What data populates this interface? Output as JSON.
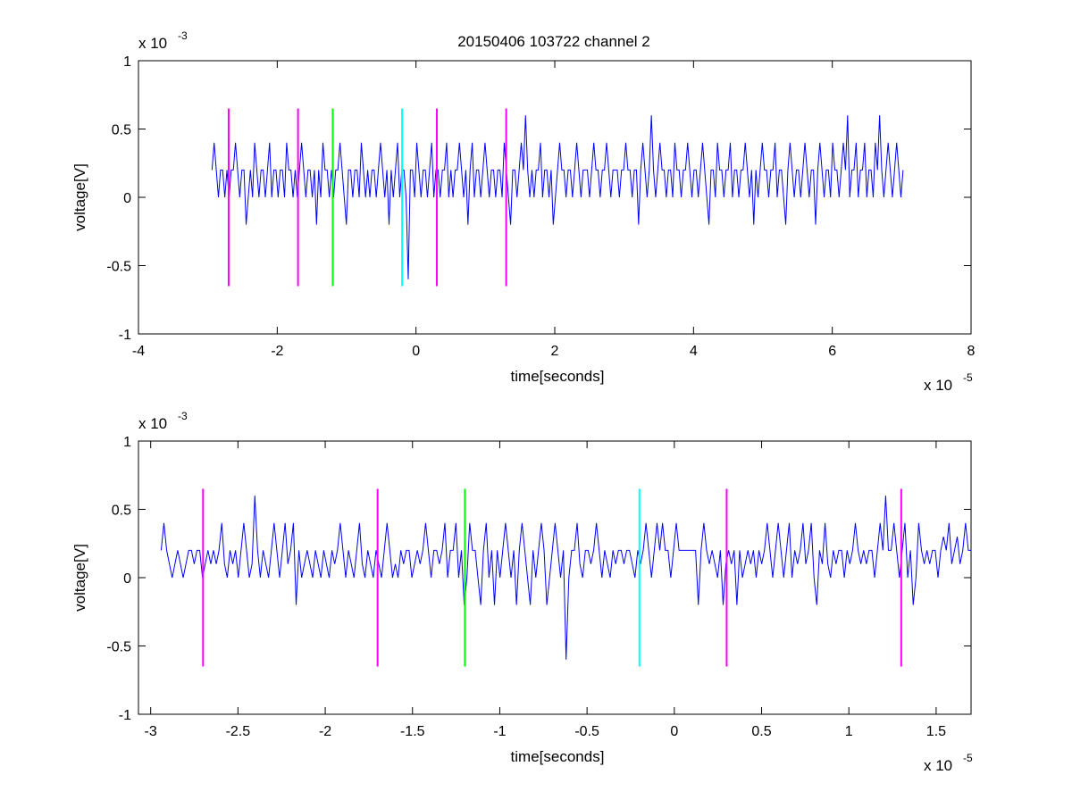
{
  "figure": {
    "title": "20150406 103722 channel 2"
  },
  "chart_data": [
    {
      "type": "line",
      "title": "20150406 103722 channel 2",
      "xlabel": "time[seconds]",
      "ylabel": "voltage[V]",
      "x_exponent_label": "x 10",
      "x_exponent": "-5",
      "y_exponent_label": "x 10",
      "y_exponent": "-3",
      "xlim": [
        -4,
        8
      ],
      "ylim": [
        -1,
        1
      ],
      "xticks": [
        -4,
        -2,
        0,
        2,
        4,
        6,
        8
      ],
      "xtick_labels": [
        "-4",
        "-2",
        "0",
        "2",
        "4",
        "6",
        "8"
      ],
      "yticks": [
        -1,
        -0.5,
        0,
        0.5,
        1
      ],
      "ytick_labels": [
        "-1",
        "-0.5",
        "0",
        "0.5",
        "1"
      ],
      "grid": false,
      "series": [
        {
          "color": "#0000ff",
          "x_start": -2.94,
          "x_end": 7.02,
          "y_values": [
            0.2,
            0.4,
            0.2,
            0,
            0.2,
            0.2,
            0,
            0.2,
            0,
            0.2,
            0.2,
            0.4,
            0.2,
            0,
            0.2,
            0.2,
            -0.2,
            0,
            0.2,
            0,
            0.4,
            0.2,
            0,
            0.2,
            0.2,
            0,
            0.2,
            0.4,
            0,
            0.2,
            0.2,
            0,
            0.2,
            0.2,
            0,
            0.4,
            0.2,
            0.2,
            0,
            0.2,
            0,
            0.2,
            0.4,
            0.2,
            0,
            0.2,
            0.2,
            0,
            0.2,
            -0.2,
            0.2,
            0,
            0.4,
            0.2,
            0.2,
            0,
            0.2,
            0,
            0.2,
            0.2,
            0.4,
            0.2,
            0,
            -0.2,
            0.2,
            0.2,
            0,
            0.2,
            0.2,
            0,
            0.4,
            0.2,
            0,
            0.2,
            0,
            0.2,
            0.2,
            0,
            0.2,
            0.4,
            0.2,
            0,
            0.2,
            -0.2,
            0.2,
            0,
            0.2,
            0.4,
            0,
            0.2,
            0.2,
            0,
            -0.6,
            0.2,
            0.2,
            0,
            0.4,
            0.2,
            0,
            0.2,
            0.2,
            0,
            0.2,
            0.4,
            0,
            0.2,
            0.2,
            0,
            0.2,
            0.2,
            0.4,
            0,
            0.2,
            0,
            0.2,
            0.2,
            0.4,
            0.2,
            0,
            0.2,
            -0.2,
            0.2,
            0.4,
            0,
            0.2,
            0.2,
            0,
            0.2,
            0.4,
            0.2,
            0,
            0.2,
            0.2,
            0,
            0.2,
            0.2,
            0,
            0.4,
            0.2,
            0,
            -0.2,
            0.2,
            0.2,
            0,
            0.2,
            0.4,
            0.2,
            0.6,
            0.2,
            0,
            0.2,
            0,
            0.2,
            0.2,
            0.4,
            0,
            0.2,
            0.2,
            0,
            0.2,
            -0.2,
            0,
            0.2,
            0.4,
            0.2,
            0.2,
            0,
            0.2,
            0.2,
            0,
            0.2,
            0.4,
            0.2,
            0,
            0.2,
            0.2,
            0.2,
            0,
            0.2,
            0.4,
            0.2,
            0.2,
            0,
            0.2,
            0.2,
            0.4,
            0.2,
            0,
            0.2,
            0.2,
            0.2,
            0,
            0.2,
            0.2,
            0.4,
            0.2,
            0.2,
            0,
            0.2,
            0.2,
            -0.2,
            0.2,
            0.4,
            0.2,
            0,
            0.2,
            0.6,
            0.2,
            0,
            0.2,
            0.4,
            0.2,
            0.2,
            0,
            0.2,
            0.2,
            0,
            0.4,
            0.2,
            0.2,
            0,
            0.2,
            0.2,
            0.4,
            0.2,
            0,
            0.2,
            0.2,
            0,
            0.2,
            0.4,
            0.2,
            0,
            -0.2,
            0.2,
            0.2,
            0,
            0.4,
            0.2,
            0.2,
            0,
            0.2,
            0.2,
            0.4,
            0,
            0.2,
            0.2,
            0,
            0.2,
            0.2,
            0.4,
            0.2,
            0,
            0.2,
            -0.2,
            0.2,
            0,
            0.2,
            0.4,
            0.2,
            0.2,
            0,
            0.2,
            0.2,
            0.4,
            0,
            0.2,
            0.2,
            0,
            -0.2,
            0.2,
            0.4,
            0.2,
            0,
            0.2,
            0.2,
            0,
            0.2,
            0.4,
            0.2,
            0,
            0.2,
            0.2,
            -0.2,
            0.2,
            0.4,
            0.2,
            0,
            0.2,
            0.2,
            0,
            0.4,
            0.2,
            0.2,
            0,
            0.2,
            0.4,
            0.2,
            0.6,
            0,
            0.2,
            0.2,
            0.4,
            0,
            0.2,
            0.2,
            0.4,
            0,
            0.2,
            0.2,
            0,
            0.4,
            0.2,
            0.6,
            0.2,
            0,
            0.2,
            0.4,
            0.2,
            0,
            0.2,
            0.4,
            0.2,
            0,
            0.2
          ]
        }
      ],
      "markers": [
        {
          "x": -2.7,
          "y_min": -0.65,
          "y_max": 0.65,
          "color": "#ff00ff"
        },
        {
          "x": -1.7,
          "y_min": -0.65,
          "y_max": 0.65,
          "color": "#ff00ff"
        },
        {
          "x": -1.2,
          "y_min": -0.65,
          "y_max": 0.65,
          "color": "#00ff00"
        },
        {
          "x": -0.2,
          "y_min": -0.65,
          "y_max": 0.65,
          "color": "#00ffff"
        },
        {
          "x": 0.3,
          "y_min": -0.65,
          "y_max": 0.65,
          "color": "#ff00ff"
        },
        {
          "x": 1.3,
          "y_min": -0.65,
          "y_max": 0.65,
          "color": "#ff00ff"
        }
      ]
    },
    {
      "type": "line",
      "title": "",
      "xlabel": "time[seconds]",
      "ylabel": "voltage[V]",
      "x_exponent_label": "x 10",
      "x_exponent": "-5",
      "y_exponent_label": "x 10",
      "y_exponent": "-3",
      "xlim": [
        -3.07,
        1.7
      ],
      "ylim": [
        -1,
        1
      ],
      "xticks": [
        -3,
        -2.5,
        -2,
        -1.5,
        -1,
        -0.5,
        0,
        0.5,
        1,
        1.5
      ],
      "xtick_labels": [
        "-3",
        "-2.5",
        "-2",
        "-1.5",
        "-1",
        "-0.5",
        "0",
        "0.5",
        "1",
        "1.5"
      ],
      "yticks": [
        -1,
        -0.5,
        0,
        0.5,
        1
      ],
      "ytick_labels": [
        "-1",
        "-0.5",
        "0",
        "0.5",
        "1"
      ],
      "grid": false,
      "series": [
        {
          "color": "#0000ff",
          "x_start": -2.94,
          "x_end": 1.7,
          "y_values": [
            0.2,
            0.4,
            0.2,
            0.1,
            0,
            0.1,
            0.2,
            0.1,
            0,
            0.1,
            0.2,
            0.2,
            0.1,
            0.2,
            0.2,
            0,
            0.1,
            0.2,
            0.1,
            0.2,
            0.1,
            0.2,
            0.4,
            0.1,
            0,
            0.2,
            0.1,
            0.2,
            0,
            0.2,
            0.4,
            0.2,
            0,
            0.1,
            0.6,
            0.2,
            0,
            0.2,
            0.1,
            0,
            0.2,
            0.4,
            0.2,
            0,
            0.2,
            0.4,
            0.1,
            0.2,
            0.4,
            -0.2,
            0.2,
            0,
            0.1,
            0.2,
            0.1,
            0,
            0.2,
            0.1,
            0,
            0.2,
            0.1,
            0,
            0.2,
            0.1,
            0.2,
            0.4,
            0.2,
            0,
            0.2,
            0.1,
            0,
            0.2,
            0.4,
            0.1,
            0,
            0.2,
            0.1,
            0,
            0.2,
            0.1,
            0,
            0.2,
            0.4,
            0.2,
            0,
            0.1,
            0,
            0.2,
            0.1,
            0.2,
            0.2,
            0,
            0.1,
            0.2,
            0.1,
            0.2,
            0.4,
            0.2,
            0,
            0.2,
            0.2,
            0.1,
            0.2,
            0.4,
            0,
            0.2,
            0.2,
            0.4,
            0,
            0.2,
            -0.2,
            0,
            0.4,
            0.2,
            0.2,
            0,
            -0.2,
            0.2,
            0.4,
            0,
            0.2,
            -0.2,
            0.2,
            0,
            0.2,
            0.4,
            0.2,
            0,
            0.2,
            -0.2,
            0.2,
            0.4,
            0.2,
            0,
            -0.2,
            0.2,
            0,
            0.2,
            0.4,
            0.2,
            -0.2,
            0,
            0.2,
            0.4,
            0.2,
            0,
            0.2,
            -0.6,
            0,
            0.2,
            0.2,
            0.4,
            0.1,
            0,
            0.2,
            0.2,
            0.1,
            0.2,
            0.4,
            0.2,
            0,
            0.2,
            0.1,
            0,
            0.2,
            0.1,
            0.2,
            0.2,
            0.1,
            0.2,
            0.2,
            0.1,
            0,
            0.2,
            0.1,
            0.2,
            0.4,
            0.2,
            0,
            0.2,
            0.4,
            0.2,
            0.4,
            0.2,
            0.2,
            0,
            0.2,
            0.4,
            0.2,
            0.2,
            0.2,
            0.2,
            0.2,
            0.2,
            0.2,
            -0.2,
            0.2,
            0.4,
            0.2,
            0.1,
            0.2,
            0.1,
            0,
            0.2,
            -0.2,
            0.1,
            0.2,
            0.1,
            0.2,
            -0.2,
            0.2,
            0,
            0.1,
            0.2,
            0.1,
            0.2,
            0,
            0.2,
            0.1,
            0.2,
            0.4,
            0.2,
            0,
            0.2,
            0.4,
            0.2,
            0,
            0.2,
            0.4,
            0,
            0.2,
            0.1,
            0.2,
            0.4,
            0.1,
            0.2,
            0.4,
            0,
            -0.2,
            0.2,
            0.1,
            0.4,
            0.1,
            0,
            0.2,
            0.1,
            0.2,
            0.2,
            0,
            0.2,
            0.1,
            0.2,
            0.4,
            0.2,
            0.1,
            0.2,
            0.1,
            0.2,
            0.2,
            0,
            0.2,
            0.4,
            0.2,
            0.6,
            0.2,
            0.2,
            0.4,
            0.2,
            0,
            0.2,
            0.4,
            0,
            0.2,
            -0.2,
            0,
            0.4,
            0.2,
            0.1,
            0.2,
            0.1,
            0.2,
            0.2,
            0,
            0.2,
            0.3,
            0.2,
            0.4,
            0.1,
            0.2,
            0.3,
            0.1,
            0.2,
            0.4,
            0.2,
            0.2
          ]
        }
      ],
      "markers": [
        {
          "x": -2.7,
          "y_min": -0.65,
          "y_max": 0.65,
          "color": "#ff00ff"
        },
        {
          "x": -1.7,
          "y_min": -0.65,
          "y_max": 0.65,
          "color": "#ff00ff"
        },
        {
          "x": -1.2,
          "y_min": -0.65,
          "y_max": 0.65,
          "color": "#00ff00"
        },
        {
          "x": -0.2,
          "y_min": -0.65,
          "y_max": 0.65,
          "color": "#00ffff"
        },
        {
          "x": 0.3,
          "y_min": -0.65,
          "y_max": 0.65,
          "color": "#ff00ff"
        },
        {
          "x": 1.3,
          "y_min": -0.65,
          "y_max": 0.65,
          "color": "#ff00ff"
        }
      ]
    }
  ]
}
